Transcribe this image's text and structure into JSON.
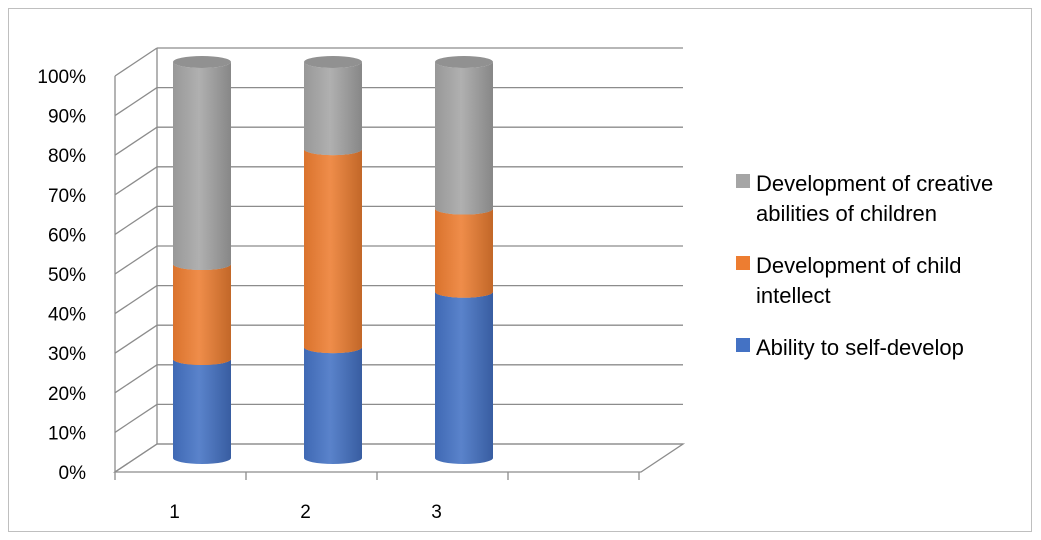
{
  "chart_data": {
    "type": "bar",
    "subtype": "stacked-100-percent-3d-cylinder",
    "categories": [
      "1",
      "2",
      "3"
    ],
    "y_ticks": [
      "0%",
      "10%",
      "20%",
      "30%",
      "40%",
      "50%",
      "60%",
      "70%",
      "80%",
      "90%",
      "100%"
    ],
    "ylim": [
      0,
      100
    ],
    "grid": true,
    "legend_position": "right",
    "series": [
      {
        "name": "Ability to self-develop",
        "legend_lines": [
          "Ability to self-develop"
        ],
        "values": [
          25,
          28,
          42
        ],
        "color": "#4472c4"
      },
      {
        "name": "Development of child intellect",
        "legend_lines": [
          "Development of child",
          "intellect"
        ],
        "values": [
          24,
          50,
          21
        ],
        "color": "#ed7d31"
      },
      {
        "name": "Development of creative abilities of children",
        "legend_lines": [
          "Development of creative",
          "abilities of children"
        ],
        "values": [
          51,
          22,
          37
        ],
        "color": "#a5a5a5"
      }
    ]
  }
}
